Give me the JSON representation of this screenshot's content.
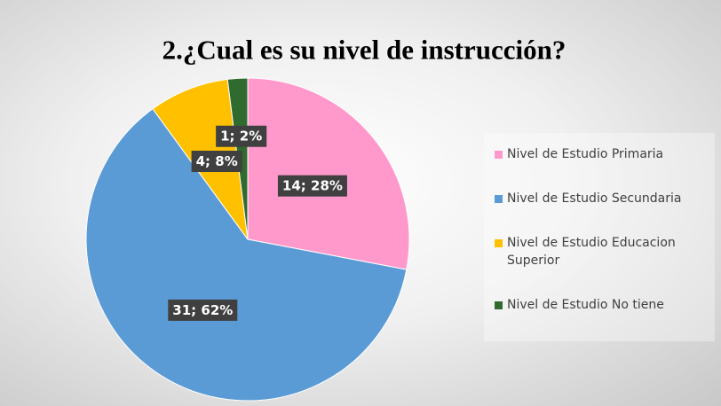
{
  "chart_data": {
    "type": "pie",
    "title": "2.¿Cual es su nivel de instrucción?",
    "categories": [
      "Nivel de Estudio Primaria",
      "Nivel de Estudio Secundaria",
      "Nivel de Estudio Educacion Superior",
      "Nivel de Estudio No tiene"
    ],
    "values": [
      14,
      31,
      4,
      1
    ],
    "value_labels": [
      "14; 28%",
      "31; 62%",
      "4; 8%",
      "1; 2%"
    ],
    "colors": [
      "#ff99cc",
      "#5b9bd5",
      "#ffc000",
      "#2f6b2f"
    ],
    "legend": "right"
  }
}
